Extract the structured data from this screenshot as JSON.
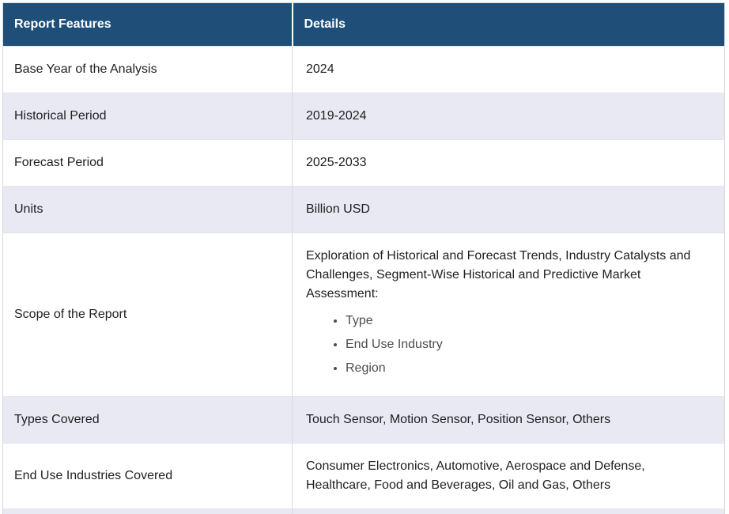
{
  "colors": {
    "header_bg": "#1f4e79",
    "header_text": "#ffffff",
    "row_alt_bg": "#e8e9f3",
    "row_white_bg": "#ffffff",
    "border": "#d9dade",
    "body_text": "#212121",
    "bullet_text": "#4d4d4d"
  },
  "table": {
    "columns": [
      "Report Features",
      "Details"
    ],
    "rows": [
      {
        "feature": "Base Year of the Analysis",
        "details": "2024"
      },
      {
        "feature": "Historical Period",
        "details": "2019-2024"
      },
      {
        "feature": "Forecast Period",
        "details": "2025-2033"
      },
      {
        "feature": "Units",
        "details": "Billion USD"
      },
      {
        "feature": "Scope of the Report",
        "details_intro": "Exploration of Historical and Forecast Trends, Industry Catalysts and Challenges, Segment-Wise Historical and Predictive Market Assessment:",
        "details_bullets": [
          "Type",
          "End Use Industry",
          "Region"
        ]
      },
      {
        "feature": "Types Covered",
        "details": "Touch Sensor, Motion Sensor, Position Sensor, Others"
      },
      {
        "feature": "End Use Industries Covered",
        "details": "Consumer Electronics, Automotive, Aerospace and Defense, Healthcare, Food and Beverages, Oil and Gas, Others"
      },
      {
        "feature": "",
        "details": ""
      }
    ]
  }
}
